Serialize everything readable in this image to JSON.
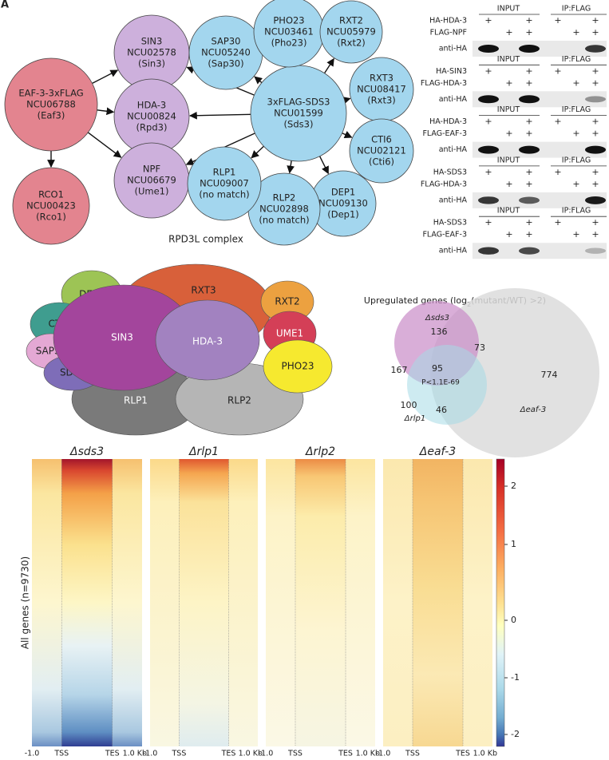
{
  "panel_label": "A",
  "network": {
    "nodes": [
      {
        "lines": [
          "EAF-3-3xFLAG",
          "NCU06788",
          "(Eaf3)"
        ]
      },
      {
        "lines": [
          "SIN3",
          "NCU02578",
          "(Sin3)"
        ]
      },
      {
        "lines": [
          "HDA-3",
          "NCU00824",
          "(Rpd3)"
        ]
      },
      {
        "lines": [
          "NPF",
          "NCU06679",
          "(Ume1)"
        ]
      },
      {
        "lines": [
          "RCO1",
          "NCU00423",
          "(Rco1)"
        ]
      },
      {
        "lines": [
          "3xFLAG-SDS3",
          "NCU01599",
          "(Sds3)"
        ]
      },
      {
        "lines": [
          "SAP30",
          "NCU05240",
          "(Sap30)"
        ]
      },
      {
        "lines": [
          "PHO23",
          "NCU03461",
          "(Pho23)"
        ]
      },
      {
        "lines": [
          "RXT2",
          "NCU05979",
          "(Rxt2)"
        ]
      },
      {
        "lines": [
          "RXT3",
          "NCU08417",
          "(Rxt3)"
        ]
      },
      {
        "lines": [
          "CTI6",
          "NCU02121",
          "(Cti6)"
        ]
      },
      {
        "lines": [
          "DEP1",
          "NCU09130",
          "(Dep1)"
        ]
      },
      {
        "lines": [
          "RLP2",
          "NCU02898",
          "(no match)"
        ]
      },
      {
        "lines": [
          "RLP1",
          "NCU09007",
          "(no match)"
        ]
      }
    ]
  },
  "coip": {
    "blots": [
      {
        "headers": [
          "INPUT",
          "IP:FLAG"
        ],
        "rows": [
          {
            "label": "HA-HDA-3",
            "lanes": [
              "+",
              null,
              "+",
              "+",
              null,
              "+"
            ]
          },
          {
            "label": "FLAG-NPF",
            "lanes": [
              null,
              "+",
              "+",
              null,
              "+",
              "+"
            ]
          }
        ],
        "antibody": "anti-HA"
      },
      {
        "headers": [
          "INPUT",
          "IP:FLAG"
        ],
        "rows": [
          {
            "label": "HA-SIN3",
            "lanes": [
              "+",
              null,
              "+",
              "+",
              null,
              "+"
            ]
          },
          {
            "label": "FLAG-HDA-3",
            "lanes": [
              null,
              "+",
              "+",
              null,
              "+",
              "+"
            ]
          }
        ],
        "antibody": "anti-HA"
      },
      {
        "headers": [
          "INPUT",
          "IP:FLAG"
        ],
        "rows": [
          {
            "label": "HA-HDA-3",
            "lanes": [
              "+",
              null,
              "+",
              "+",
              null,
              "+"
            ]
          },
          {
            "label": "FLAG-EAF-3",
            "lanes": [
              null,
              "+",
              "+",
              null,
              "+",
              "+"
            ]
          }
        ],
        "antibody": "anti-HA"
      },
      {
        "headers": [
          "INPUT",
          "IP:FLAG"
        ],
        "rows": [
          {
            "label": "HA-SDS3",
            "lanes": [
              "+",
              null,
              "+",
              "+",
              null,
              "+"
            ]
          },
          {
            "label": "FLAG-HDA-3",
            "lanes": [
              null,
              "+",
              "+",
              null,
              "+",
              "+"
            ]
          }
        ],
        "antibody": "anti-HA"
      },
      {
        "headers": [
          "INPUT",
          "IP:FLAG"
        ],
        "rows": [
          {
            "label": "HA-SDS3",
            "lanes": [
              "+",
              null,
              "+",
              "+",
              null,
              "+"
            ]
          },
          {
            "label": "FLAG-EAF-3",
            "lanes": [
              null,
              "+",
              "+",
              null,
              "+",
              "+"
            ]
          }
        ],
        "antibody": "anti-HA"
      }
    ]
  },
  "complex": {
    "title": "RPD3L complex",
    "subunits": [
      "RLP1",
      "RLP2",
      "RXT3",
      "DEP1",
      "RXT2",
      "CTI6",
      "UME1",
      "SAP30",
      "PHO23",
      "SDS3",
      "SIN3",
      "HDA-3"
    ]
  },
  "venn": {
    "title": [
      "Upregulated genes (log",
      "2",
      "(mutant/WT) >2)"
    ],
    "sets": [
      "Δsds3",
      "Δrlp1",
      "Δeaf-3"
    ],
    "regions": [
      136,
      73,
      167,
      95,
      774,
      100,
      46
    ],
    "p_value": "P<1.1E-69"
  },
  "heatmap": {
    "panels": [
      "Δsds3",
      "Δrlp1",
      "Δrlp2",
      "Δeaf-3"
    ],
    "x_labels": [
      "-1.0",
      "TSS",
      "TES",
      "1.0 Kb"
    ],
    "y_label": "All genes (n=9730)",
    "colorbar_ticks": [
      2,
      1,
      0,
      -1,
      -2
    ]
  }
}
